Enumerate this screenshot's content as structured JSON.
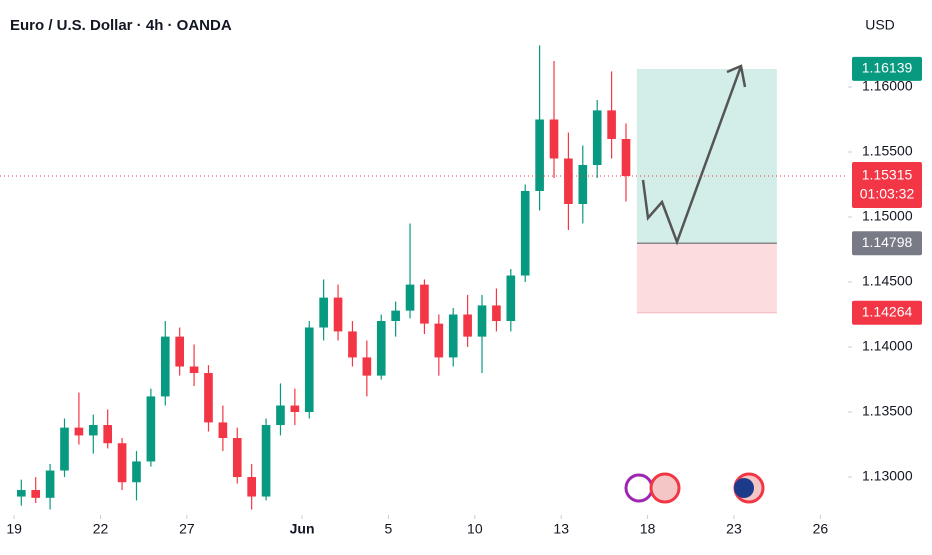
{
  "chart_data": {
    "type": "candlestick",
    "title": "Euro / U.S. Dollar · 4h · OANDA",
    "currency": "USD",
    "up_color": "#089981",
    "down_color": "#f23645",
    "x": [
      0.25,
      0.75,
      1.25,
      1.75,
      2.25,
      2.75,
      3.25,
      3.75,
      4.25,
      4.75,
      5.25,
      5.75,
      6.25,
      6.75,
      7.25,
      7.75,
      8.25,
      8.75,
      9.25,
      9.75,
      10.25,
      10.75,
      11.25,
      11.75,
      12.25,
      12.75,
      13.25,
      13.75,
      14.25,
      14.75,
      15.25,
      15.75,
      16.25,
      16.75,
      17.25,
      17.75,
      18.25,
      18.75,
      19.25,
      19.75,
      20.25,
      20.75,
      21.25
    ],
    "open": [
      1.1285,
      1.129,
      1.1284,
      1.1305,
      1.1338,
      1.1332,
      1.134,
      1.1326,
      1.1296,
      1.1312,
      1.1362,
      1.1408,
      1.1385,
      1.138,
      1.1342,
      1.133,
      1.13,
      1.1285,
      1.134,
      1.1355,
      1.135,
      1.1415,
      1.1438,
      1.1412,
      1.1392,
      1.1378,
      1.142,
      1.1428,
      1.1448,
      1.1418,
      1.1392,
      1.1425,
      1.1408,
      1.1432,
      1.142,
      1.1455,
      1.152,
      1.1575,
      1.1545,
      1.151,
      1.154,
      1.1582,
      1.156
    ],
    "high": [
      1.1298,
      1.13,
      1.131,
      1.1345,
      1.1365,
      1.1348,
      1.1352,
      1.133,
      1.132,
      1.1368,
      1.142,
      1.1415,
      1.1402,
      1.1386,
      1.1355,
      1.1338,
      1.131,
      1.1345,
      1.1372,
      1.1368,
      1.142,
      1.1452,
      1.1448,
      1.142,
      1.1405,
      1.1425,
      1.1435,
      1.1495,
      1.1452,
      1.1425,
      1.143,
      1.144,
      1.144,
      1.1445,
      1.146,
      1.1525,
      1.1632,
      1.162,
      1.1565,
      1.1555,
      1.159,
      1.1612,
      1.1572
    ],
    "low": [
      1.1278,
      1.128,
      1.1275,
      1.13,
      1.1325,
      1.1318,
      1.1322,
      1.129,
      1.1282,
      1.1308,
      1.1355,
      1.1378,
      1.137,
      1.1335,
      1.132,
      1.1295,
      1.1275,
      1.1282,
      1.1332,
      1.134,
      1.1345,
      1.1405,
      1.1405,
      1.1385,
      1.1362,
      1.1375,
      1.1408,
      1.1422,
      1.141,
      1.1378,
      1.1385,
      1.14,
      1.138,
      1.1412,
      1.1412,
      1.145,
      1.1505,
      1.153,
      1.149,
      1.1495,
      1.153,
      1.1545,
      1.1512
    ],
    "close": [
      1.129,
      1.1284,
      1.1305,
      1.1338,
      1.1332,
      1.134,
      1.1326,
      1.1296,
      1.1312,
      1.1362,
      1.1408,
      1.1385,
      1.138,
      1.1342,
      1.133,
      1.13,
      1.1285,
      1.134,
      1.1355,
      1.135,
      1.1415,
      1.1438,
      1.1412,
      1.1392,
      1.1378,
      1.142,
      1.1428,
      1.1448,
      1.1418,
      1.1392,
      1.1425,
      1.1408,
      1.1432,
      1.142,
      1.1455,
      1.152,
      1.1575,
      1.1545,
      1.151,
      1.154,
      1.1582,
      1.156,
      1.15315
    ],
    "xlim": [
      -0.49,
      28.96
    ],
    "xticks": [
      {
        "value": 0,
        "label": "19"
      },
      {
        "value": 3,
        "label": "22"
      },
      {
        "value": 6,
        "label": "27"
      },
      {
        "value": 10,
        "label": "Jun"
      },
      {
        "value": 13,
        "label": "5"
      },
      {
        "value": 16,
        "label": "10"
      },
      {
        "value": 19,
        "label": "13"
      },
      {
        "value": 22,
        "label": "18"
      },
      {
        "value": 25,
        "label": "23"
      },
      {
        "value": 28,
        "label": "26"
      }
    ],
    "ylim": [
      1.12708,
      1.16669
    ],
    "yticks": [
      {
        "value": 1.13,
        "label": "1.13000"
      },
      {
        "value": 1.135,
        "label": "1.13500"
      },
      {
        "value": 1.14,
        "label": "1.14000"
      },
      {
        "value": 1.145,
        "label": "1.14500"
      },
      {
        "value": 1.15,
        "label": "1.15000"
      },
      {
        "value": 1.155,
        "label": "1.15500"
      },
      {
        "value": 1.16,
        "label": "1.16000"
      }
    ],
    "last_price": 1.15315,
    "countdown": "01:03:32",
    "position": {
      "x_start": 21.63,
      "x_end": 26.49,
      "target": 1.16139,
      "entry": 1.14798,
      "stop": 1.14264
    }
  }
}
